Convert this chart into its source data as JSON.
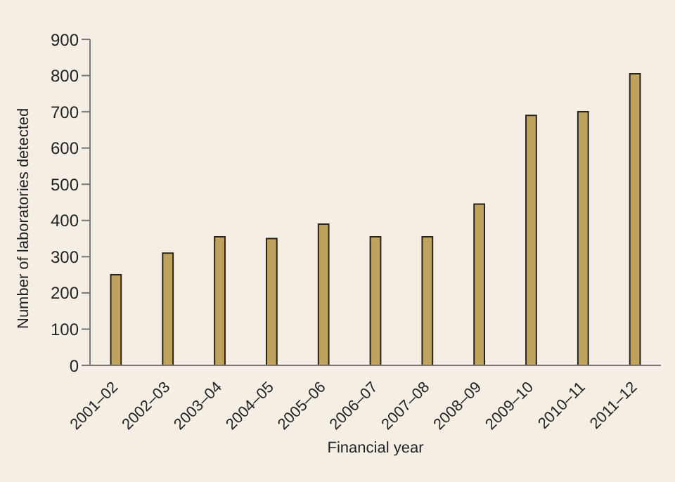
{
  "chart_data": {
    "type": "bar",
    "xlabel": "Financial year",
    "ylabel": "Number of laboratories detected",
    "categories": [
      "2001–02",
      "2002–03",
      "2003–04",
      "2004–05",
      "2005–06",
      "2006–07",
      "2007–08",
      "2008–09",
      "2009–10",
      "2010–11",
      "2011–12"
    ],
    "values": [
      250,
      310,
      355,
      350,
      390,
      355,
      355,
      445,
      690,
      700,
      805
    ],
    "color": "#bfa25e",
    "ylim": [
      0,
      900
    ],
    "yticks": [
      0,
      100,
      200,
      300,
      400,
      500,
      600,
      700,
      800,
      900
    ],
    "grid": false
  }
}
